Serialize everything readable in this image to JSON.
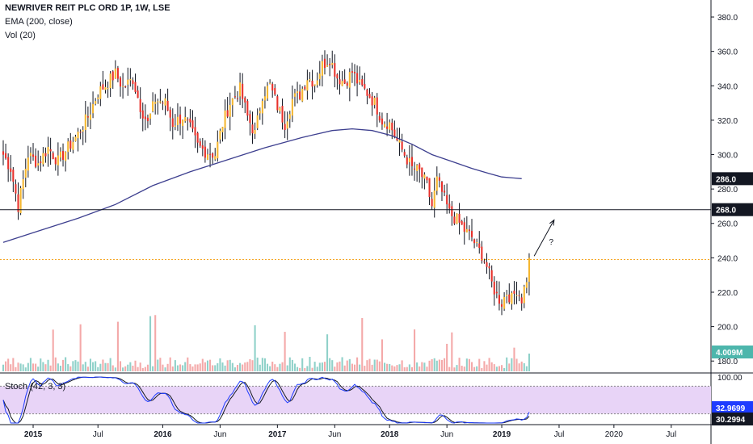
{
  "chart_data": {
    "type": "candlestick",
    "symbol": "NEWRIVER REIT PLC ORD 1P, 1W, LSE",
    "indicators": {
      "ema_label": "EMA (200, close)",
      "volume_label": "Vol (20)",
      "stoch_label": "Stoch (42, 3, 3)"
    },
    "price_axis": {
      "ylim": [
        174,
        388
      ],
      "ticks": [
        "380.0",
        "360.0",
        "340.0",
        "320.0",
        "300.0",
        "280.0",
        "260.0",
        "240.0",
        "220.0",
        "200.0",
        "180.0"
      ],
      "tick_values": [
        380,
        360,
        340,
        320,
        300,
        280,
        260,
        240,
        220,
        200,
        180
      ],
      "badges": [
        {
          "label": "286.0",
          "value": 286.0,
          "color": "#131722"
        },
        {
          "label": "268.0",
          "value": 268.0,
          "color": "#131722"
        }
      ]
    },
    "time_axis": {
      "labels": [
        "2015",
        "Jul",
        "2016",
        "Jun",
        "2017",
        "Jun",
        "2018",
        "Jun",
        "2019",
        "Jul",
        "2020",
        "Jul"
      ],
      "bold_labels": [
        "2015",
        "2016",
        "2017",
        "2018",
        "2019"
      ],
      "label_weeks": [
        12,
        38,
        64,
        87,
        110,
        133,
        155,
        178,
        200,
        223,
        245,
        268
      ],
      "total_weeks": 282
    },
    "horizontal_line": {
      "value": 268.0,
      "color": "#131722"
    },
    "dotted_line": {
      "value": 239.0,
      "color": "#f5a623"
    },
    "annotation": {
      "text": "?",
      "from": {
        "week": 213,
        "value": 241
      },
      "to": {
        "week": 221,
        "value": 262
      }
    },
    "volume": {
      "badge": "4.009M",
      "badge_color": "#4db6ac"
    },
    "stochastic": {
      "badge_upper": "32.9699",
      "badge_lower": "30.2994",
      "badge_upper_color": "#1e3cff",
      "badge_lower_color": "#131722",
      "top_label": "100.00",
      "overbought": 80,
      "oversold": 20
    },
    "price_keypoints": [
      [
        0,
        300
      ],
      [
        3,
        292
      ],
      [
        6,
        270
      ],
      [
        10,
        300
      ],
      [
        14,
        295
      ],
      [
        18,
        304
      ],
      [
        22,
        296
      ],
      [
        26,
        304
      ],
      [
        30,
        312
      ],
      [
        34,
        322
      ],
      [
        38,
        336
      ],
      [
        42,
        342
      ],
      [
        45,
        347
      ],
      [
        48,
        339
      ],
      [
        52,
        344
      ],
      [
        55,
        328
      ],
      [
        58,
        318
      ],
      [
        61,
        332
      ],
      [
        65,
        330
      ],
      [
        68,
        318
      ],
      [
        72,
        322
      ],
      [
        75,
        315
      ],
      [
        78,
        305
      ],
      [
        81,
        302
      ],
      [
        85,
        300
      ],
      [
        88,
        318
      ],
      [
        91,
        330
      ],
      [
        95,
        338
      ],
      [
        98,
        322
      ],
      [
        101,
        312
      ],
      [
        104,
        335
      ],
      [
        107,
        340
      ],
      [
        110,
        328
      ],
      [
        113,
        318
      ],
      [
        116,
        332
      ],
      [
        119,
        335
      ],
      [
        122,
        345
      ],
      [
        125,
        342
      ],
      [
        128,
        352
      ],
      [
        131,
        356
      ],
      [
        134,
        345
      ],
      [
        137,
        342
      ],
      [
        140,
        348
      ],
      [
        143,
        340
      ],
      [
        146,
        336
      ],
      [
        149,
        330
      ],
      [
        152,
        320
      ],
      [
        155,
        318
      ],
      [
        158,
        308
      ],
      [
        161,
        300
      ],
      [
        164,
        292
      ],
      [
        167,
        290
      ],
      [
        170,
        282
      ],
      [
        172,
        270
      ],
      [
        174,
        285
      ],
      [
        176,
        278
      ],
      [
        179,
        266
      ],
      [
        182,
        262
      ],
      [
        185,
        256
      ],
      [
        188,
        252
      ],
      [
        190,
        246
      ],
      [
        192,
        242
      ],
      [
        194,
        235
      ],
      [
        196,
        225
      ],
      [
        198,
        218
      ],
      [
        200,
        214
      ],
      [
        202,
        220
      ],
      [
        204,
        216
      ],
      [
        206,
        222
      ],
      [
        208,
        216
      ],
      [
        210,
        228
      ],
      [
        211,
        240
      ]
    ],
    "ema_keypoints": [
      [
        0,
        249
      ],
      [
        15,
        256
      ],
      [
        30,
        263
      ],
      [
        45,
        271
      ],
      [
        60,
        282
      ],
      [
        75,
        290
      ],
      [
        90,
        297
      ],
      [
        105,
        304
      ],
      [
        120,
        310
      ],
      [
        132,
        314
      ],
      [
        140,
        315
      ],
      [
        148,
        314
      ],
      [
        156,
        311
      ],
      [
        164,
        306
      ],
      [
        172,
        300
      ],
      [
        180,
        296
      ],
      [
        188,
        292
      ],
      [
        195,
        289
      ],
      [
        200,
        287
      ],
      [
        208,
        286
      ]
    ]
  }
}
